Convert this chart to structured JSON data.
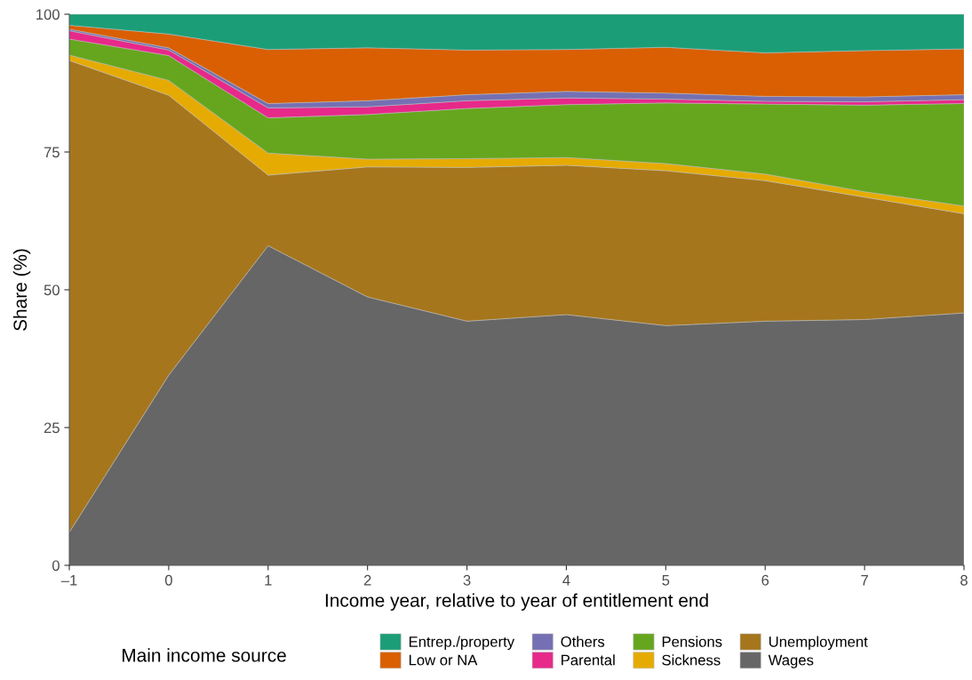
{
  "chart_data": {
    "type": "area",
    "stacked": true,
    "xlabel": "Income year, relative to year of entitlement end",
    "ylabel": "Share (%)",
    "legend_title": "Main income source",
    "x": [
      -1,
      0,
      1,
      2,
      3,
      4,
      5,
      6,
      7,
      8
    ],
    "xlim": [
      -1,
      8
    ],
    "xticks": [
      {
        "value": -1,
        "label": "–1"
      },
      0,
      1,
      2,
      3,
      4,
      5,
      6,
      7,
      8
    ],
    "ylim": [
      0,
      100
    ],
    "yticks": [
      0,
      25,
      50,
      75,
      100
    ],
    "grid": false,
    "legend": "bottom",
    "series": [
      {
        "name": "Wages",
        "color": "#666666",
        "values": [
          6,
          34.5,
          58,
          48.7,
          44.3,
          45.5,
          43.5,
          44.3,
          44.6,
          45.8
        ]
      },
      {
        "name": "Unemployment",
        "color": "#a6761d",
        "values": [
          85.6,
          50.8,
          12.8,
          23.6,
          27.9,
          27.1,
          28.1,
          25.5,
          22.2,
          18.0
        ]
      },
      {
        "name": "Sickness",
        "color": "#e6ab02",
        "values": [
          1.0,
          2.7,
          4.0,
          1.4,
          1.6,
          1.4,
          1.3,
          1.2,
          1.0,
          1.4
        ]
      },
      {
        "name": "Pensions",
        "color": "#66a61e",
        "values": [
          2.9,
          4.5,
          6.4,
          8.1,
          9.1,
          9.6,
          11.0,
          12.7,
          15.7,
          18.6
        ]
      },
      {
        "name": "Parental",
        "color": "#e7298a",
        "values": [
          1.5,
          1.0,
          1.8,
          1.4,
          1.4,
          1.2,
          0.7,
          0.5,
          0.6,
          0.7
        ]
      },
      {
        "name": "Others",
        "color": "#7570b3",
        "values": [
          0.3,
          0.4,
          0.8,
          1.1,
          1.1,
          1.2,
          1.1,
          0.9,
          0.9,
          0.9
        ]
      },
      {
        "name": "Low or NA",
        "color": "#d95f02",
        "values": [
          0.7,
          2.5,
          9.8,
          9.6,
          8.1,
          7.6,
          8.3,
          7.9,
          8.4,
          8.3
        ]
      },
      {
        "name": "Entrep./property",
        "color": "#1b9e77",
        "values": [
          2.0,
          3.6,
          6.4,
          6.1,
          6.5,
          6.4,
          6.0,
          7.0,
          6.6,
          6.3
        ]
      }
    ]
  }
}
